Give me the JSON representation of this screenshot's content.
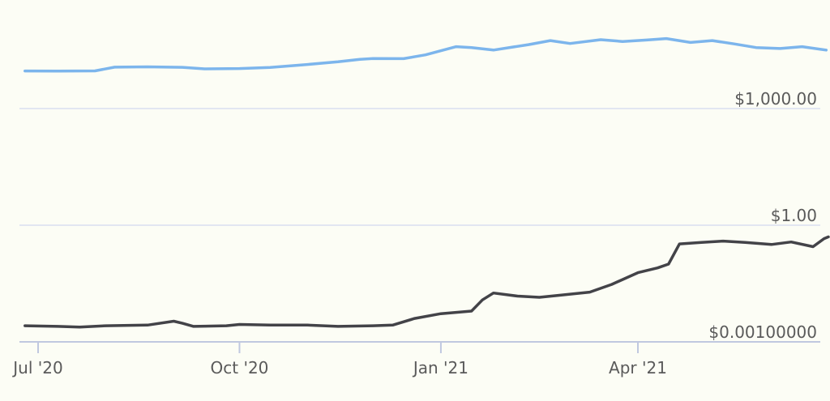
{
  "chart_data": {
    "type": "line",
    "title": "",
    "xlabel": "",
    "ylabel": "",
    "y_scale": "log",
    "ylim": [
      0.0001,
      100000
    ],
    "xlim": [
      "2020-06-25",
      "2021-06-27"
    ],
    "grid": true,
    "legend": "none",
    "x_ticks": [
      {
        "date": "2020-07-01",
        "label": "Jul '20"
      },
      {
        "date": "2020-10-01",
        "label": "Oct '20"
      },
      {
        "date": "2021-01-01",
        "label": "Jan '21"
      },
      {
        "date": "2021-04-01",
        "label": "Apr '21"
      }
    ],
    "y_ticks": [
      {
        "value": 1000,
        "label": "$1,000.00"
      },
      {
        "value": 1,
        "label": "$1.00"
      },
      {
        "value": 0.001,
        "label": "$0.00100000"
      }
    ],
    "series": [
      {
        "color": "#7cb5ec",
        "points": [
          [
            "2020-06-25",
            9250
          ],
          [
            "2020-07-10",
            9200
          ],
          [
            "2020-07-27",
            9300
          ],
          [
            "2020-08-05",
            11600
          ],
          [
            "2020-08-20",
            11800
          ],
          [
            "2020-09-05",
            11500
          ],
          [
            "2020-09-15",
            10500
          ],
          [
            "2020-10-01",
            10700
          ],
          [
            "2020-10-15",
            11400
          ],
          [
            "2020-11-01",
            13600
          ],
          [
            "2020-11-15",
            15900
          ],
          [
            "2020-11-25",
            18500
          ],
          [
            "2020-12-01",
            19300
          ],
          [
            "2020-12-15",
            19200
          ],
          [
            "2020-12-25",
            24000
          ],
          [
            "2021-01-08",
            39000
          ],
          [
            "2021-01-15",
            37000
          ],
          [
            "2021-01-25",
            32000
          ],
          [
            "2021-02-10",
            44000
          ],
          [
            "2021-02-20",
            56000
          ],
          [
            "2021-03-01",
            47000
          ],
          [
            "2021-03-15",
            59000
          ],
          [
            "2021-03-25",
            53000
          ],
          [
            "2021-04-05",
            58000
          ],
          [
            "2021-04-14",
            63000
          ],
          [
            "2021-04-25",
            50000
          ],
          [
            "2021-05-05",
            56000
          ],
          [
            "2021-05-15",
            46000
          ],
          [
            "2021-05-25",
            37000
          ],
          [
            "2021-06-05",
            35000
          ],
          [
            "2021-06-15",
            39000
          ],
          [
            "2021-06-26",
            32000
          ]
        ]
      },
      {
        "color": "#434348",
        "points": [
          [
            "2020-06-25",
            0.0026
          ],
          [
            "2020-07-10",
            0.0025
          ],
          [
            "2020-07-20",
            0.0024
          ],
          [
            "2020-08-01",
            0.0026
          ],
          [
            "2020-08-20",
            0.0027
          ],
          [
            "2020-09-01",
            0.0034
          ],
          [
            "2020-09-05",
            0.003
          ],
          [
            "2020-09-10",
            0.0025
          ],
          [
            "2020-09-25",
            0.0026
          ],
          [
            "2020-10-01",
            0.0028
          ],
          [
            "2020-10-15",
            0.0027
          ],
          [
            "2020-11-01",
            0.0027
          ],
          [
            "2020-11-15",
            0.0025
          ],
          [
            "2020-12-01",
            0.0026
          ],
          [
            "2020-12-10",
            0.0027
          ],
          [
            "2020-12-20",
            0.004
          ],
          [
            "2021-01-01",
            0.0053
          ],
          [
            "2021-01-15",
            0.0062
          ],
          [
            "2021-01-20",
            0.012
          ],
          [
            "2021-01-25",
            0.018
          ],
          [
            "2021-02-05",
            0.015
          ],
          [
            "2021-02-15",
            0.014
          ],
          [
            "2021-02-25",
            0.016
          ],
          [
            "2021-03-10",
            0.019
          ],
          [
            "2021-03-20",
            0.03
          ],
          [
            "2021-04-01",
            0.06
          ],
          [
            "2021-04-10",
            0.08
          ],
          [
            "2021-04-15",
            0.1
          ],
          [
            "2021-04-20",
            0.33
          ],
          [
            "2021-04-30",
            0.36
          ],
          [
            "2021-05-10",
            0.39
          ],
          [
            "2021-05-20",
            0.36
          ],
          [
            "2021-06-01",
            0.32
          ],
          [
            "2021-06-10",
            0.37
          ],
          [
            "2021-06-20",
            0.28
          ],
          [
            "2021-06-25",
            0.45
          ],
          [
            "2021-06-27",
            0.5
          ]
        ]
      }
    ]
  }
}
